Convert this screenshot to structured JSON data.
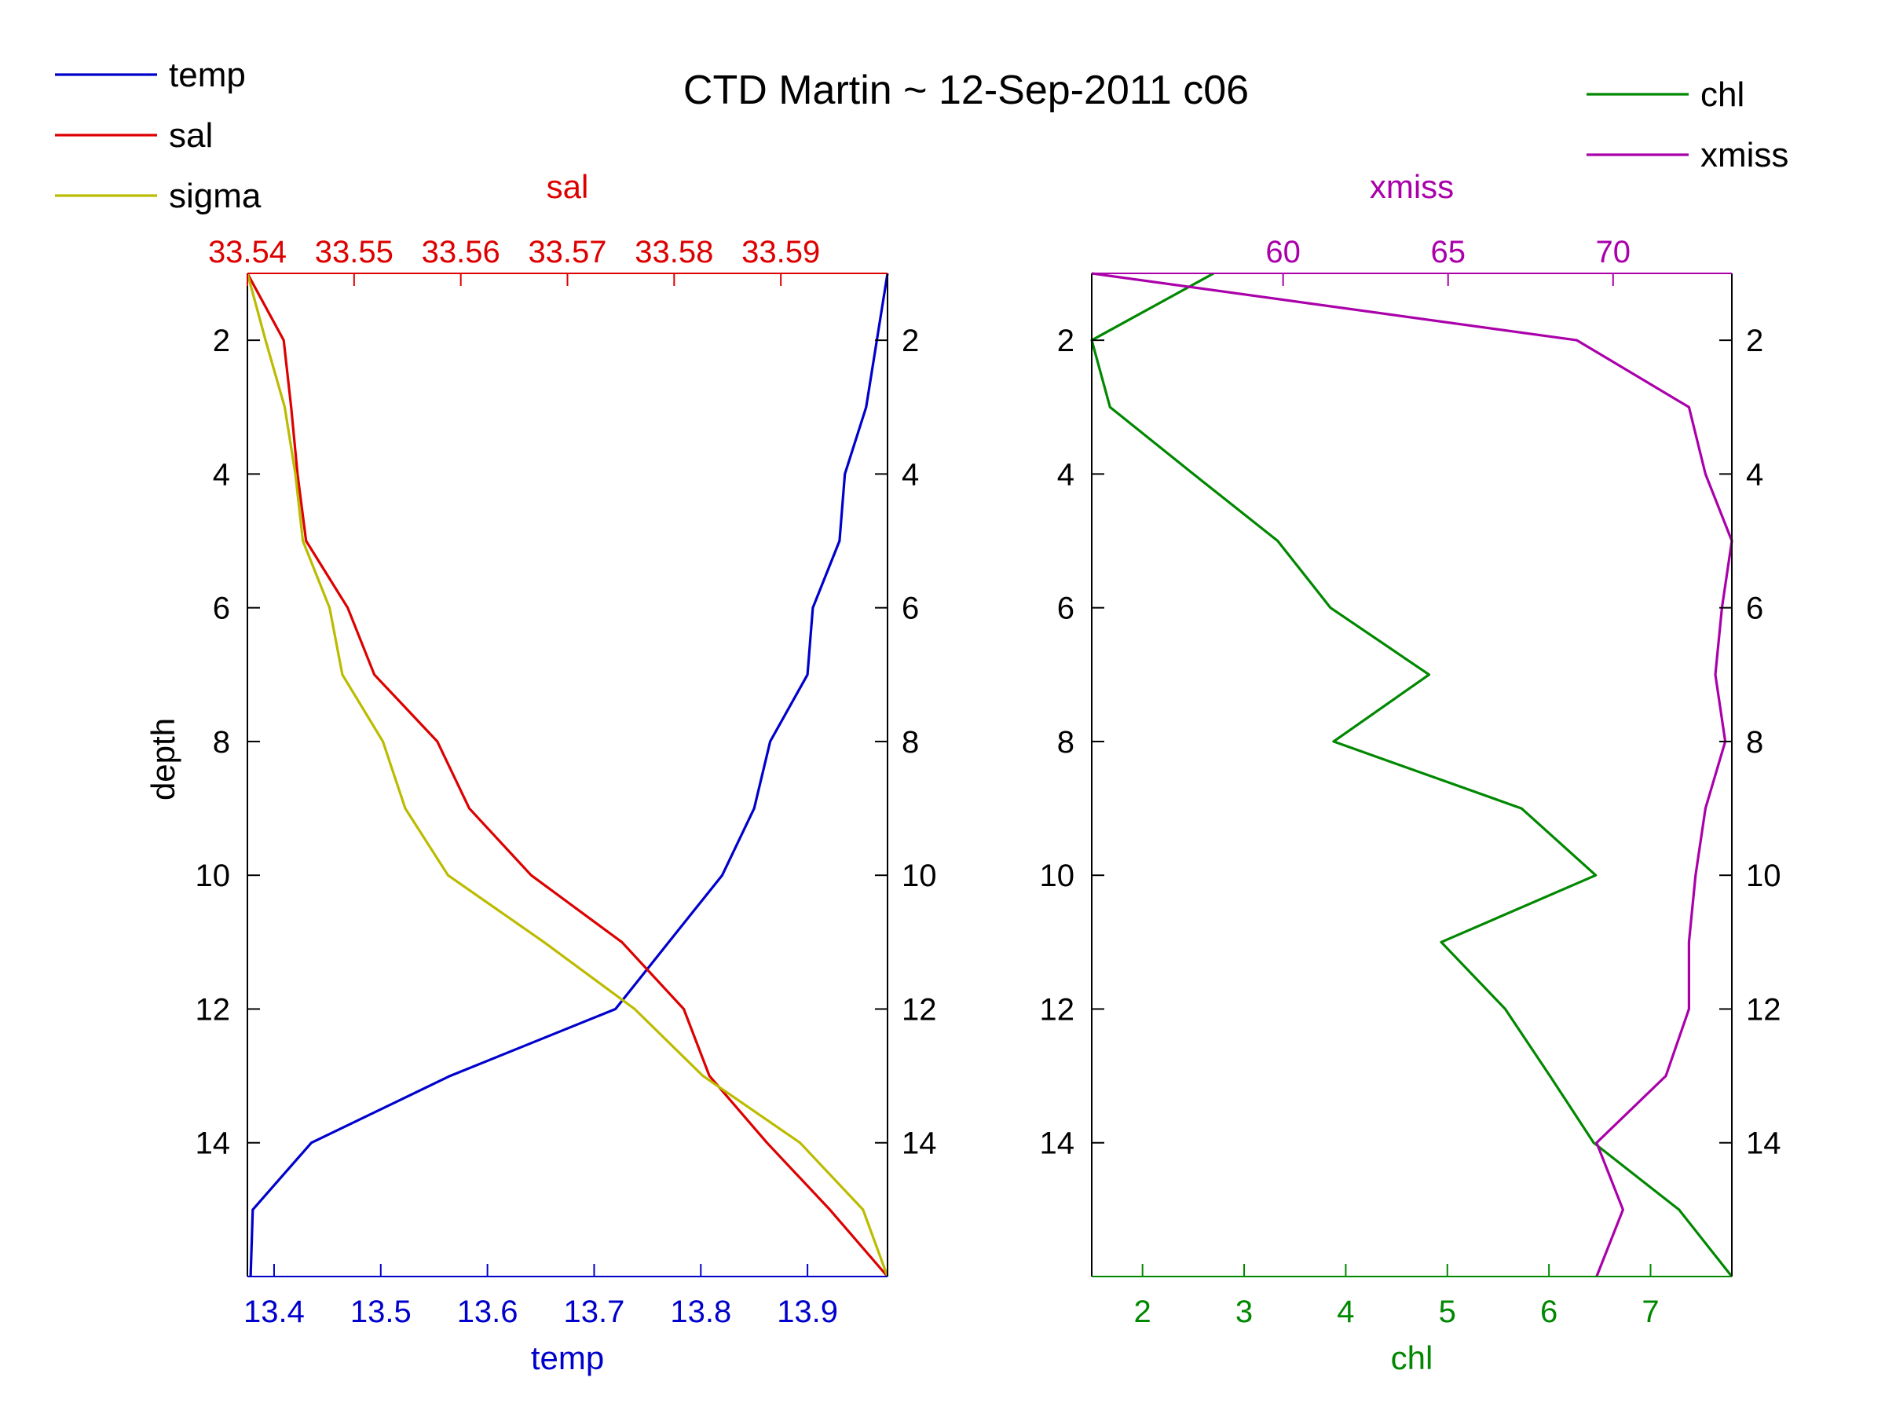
{
  "title": "CTD Martin ~ 12-Sep-2011 c06",
  "colors": {
    "temp": "#0000cc",
    "sal": "#dd0000",
    "sigma": "#bbbb00",
    "chl": "#008800",
    "xmiss": "#aa00aa",
    "axis": "#000000"
  },
  "legend_left": [
    {
      "label": "temp",
      "color_key": "temp"
    },
    {
      "label": "sal",
      "color_key": "sal"
    },
    {
      "label": "sigma",
      "color_key": "sigma"
    }
  ],
  "legend_right": [
    {
      "label": "chl",
      "color_key": "chl"
    },
    {
      "label": "xmiss",
      "color_key": "xmiss"
    }
  ],
  "chart_data": [
    {
      "type": "line",
      "orientation": "profile",
      "ylabel": "depth",
      "ylim": [
        1,
        16
      ],
      "y_reversed": true,
      "yticks": [
        2,
        4,
        6,
        8,
        10,
        12,
        14
      ],
      "bottom_axis": {
        "label": "temp",
        "color_key": "temp",
        "lim": [
          13.375,
          13.975
        ],
        "ticks": [
          13.4,
          13.5,
          13.6,
          13.7,
          13.8,
          13.9
        ],
        "tick_labels": [
          "13.4",
          "13.5",
          "13.6",
          "13.7",
          "13.8",
          "13.9"
        ]
      },
      "top_axis": {
        "label": "sal",
        "color_key": "sal",
        "lim": [
          33.54,
          33.6
        ],
        "ticks": [
          33.54,
          33.55,
          33.56,
          33.57,
          33.58,
          33.59
        ],
        "tick_labels": [
          "33.54",
          "33.55",
          "33.56",
          "33.57",
          "33.58",
          "33.59"
        ]
      },
      "series": [
        {
          "name": "temp",
          "axis": "bottom",
          "color_key": "temp",
          "depth": [
            1,
            2,
            3,
            4,
            5,
            6,
            7,
            8,
            9,
            10,
            11,
            12,
            13,
            14,
            15,
            16
          ],
          "values": [
            13.975,
            13.965,
            13.955,
            13.935,
            13.93,
            13.905,
            13.9,
            13.865,
            13.85,
            13.82,
            13.77,
            13.72,
            13.565,
            13.435,
            13.38,
            13.378
          ]
        },
        {
          "name": "sal",
          "axis": "top",
          "color_key": "sal",
          "depth": [
            1,
            2,
            3,
            4,
            5,
            6,
            7,
            8,
            9,
            10,
            11,
            12,
            13,
            14,
            15,
            16
          ],
          "values": [
            33.54,
            33.5434,
            33.5441,
            33.5447,
            33.5455,
            33.5494,
            33.5519,
            33.5578,
            33.5608,
            33.5666,
            33.5751,
            33.5809,
            33.5833,
            33.5887,
            33.5946,
            33.6
          ]
        },
        {
          "name": "sigma",
          "axis": "top",
          "color_key": "sigma",
          "depth": [
            1,
            2,
            3,
            4,
            5,
            6,
            7,
            8,
            9,
            10,
            11,
            12,
            13,
            14,
            15,
            16
          ],
          "values": [
            33.54,
            33.5417,
            33.5435,
            33.5445,
            33.5452,
            33.5477,
            33.5489,
            33.5527,
            33.5548,
            33.5588,
            33.5678,
            33.5763,
            33.5827,
            33.5918,
            33.5977,
            33.6
          ]
        }
      ]
    },
    {
      "type": "line",
      "orientation": "profile",
      "ylim": [
        1,
        16
      ],
      "y_reversed": true,
      "yticks": [
        2,
        4,
        6,
        8,
        10,
        12,
        14
      ],
      "bottom_axis": {
        "label": "chl",
        "color_key": "chl",
        "lim": [
          1.5,
          7.8
        ],
        "ticks": [
          2,
          3,
          4,
          5,
          6,
          7
        ],
        "tick_labels": [
          "2",
          "3",
          "4",
          "5",
          "6",
          "7"
        ]
      },
      "top_axis": {
        "label": "xmiss",
        "color_key": "xmiss",
        "lim": [
          54.2,
          73.6
        ],
        "ticks": [
          60,
          65,
          70
        ],
        "tick_labels": [
          "60",
          "65",
          "70"
        ]
      },
      "series": [
        {
          "name": "chl",
          "axis": "bottom",
          "color_key": "chl",
          "depth": [
            1,
            2,
            3,
            4,
            5,
            6,
            7,
            8,
            9,
            10,
            11,
            12,
            13,
            14,
            15,
            16
          ],
          "values": [
            2.7,
            1.5,
            1.68,
            2.5,
            3.33,
            3.85,
            4.82,
            3.88,
            5.73,
            6.46,
            4.94,
            5.57,
            6.01,
            6.44,
            7.28,
            7.8
          ]
        },
        {
          "name": "xmiss",
          "axis": "top",
          "color_key": "xmiss",
          "depth": [
            1,
            2,
            3,
            4,
            5,
            6,
            7,
            8,
            9,
            10,
            11,
            12,
            13,
            14,
            15,
            16
          ],
          "values": [
            54.2,
            68.9,
            72.3,
            72.8,
            73.6,
            73.3,
            73.1,
            73.4,
            72.8,
            72.5,
            72.3,
            72.3,
            71.6,
            69.5,
            70.3,
            69.5
          ]
        }
      ]
    }
  ]
}
